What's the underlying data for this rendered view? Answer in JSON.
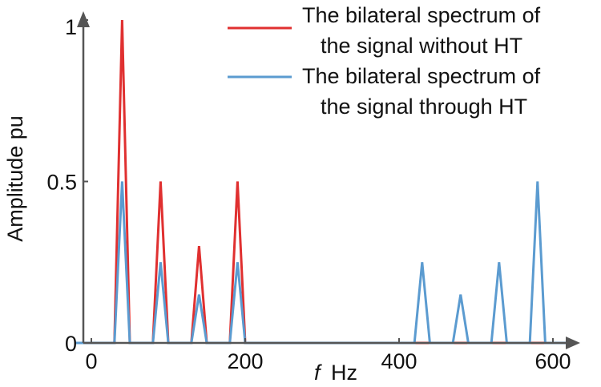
{
  "chart_data": {
    "type": "line",
    "xlabel_italic": "f",
    "xlabel_unit": "Hz",
    "ylabel": "Amplitude pu",
    "xlim": [
      -20,
      620
    ],
    "ylim": [
      0,
      1.03
    ],
    "x_ticks": [
      0,
      200,
      400,
      600
    ],
    "y_ticks": [
      {
        "value": 0,
        "label": "0"
      },
      {
        "value": 0.5,
        "label": "0.5"
      },
      {
        "value": 1,
        "label": "1"
      }
    ],
    "grid": false,
    "legend_position": "top-right",
    "series": [
      {
        "name_lines": [
          "The bilateral spectrum of",
          "the signal without HT"
        ],
        "color": "#e03030",
        "x": [
          -20,
          30,
          40,
          50,
          80,
          90,
          100,
          130,
          140,
          150,
          180,
          190,
          200,
          620
        ],
        "y": [
          0,
          0,
          1,
          0,
          0,
          0.5,
          0,
          0,
          0.3,
          0,
          0,
          0.5,
          0,
          0
        ]
      },
      {
        "name_lines": [
          "The bilateral spectrum of",
          "the signal through HT"
        ],
        "color": "#5b9bd0",
        "x": [
          -20,
          30,
          40,
          50,
          80,
          90,
          100,
          130,
          140,
          150,
          180,
          190,
          200,
          420,
          430,
          440,
          470,
          480,
          490,
          520,
          530,
          540,
          570,
          580,
          590,
          620
        ],
        "y": [
          0,
          0,
          0.5,
          0,
          0,
          0.25,
          0,
          0,
          0.15,
          0,
          0,
          0.25,
          0,
          0,
          0.25,
          0,
          0,
          0.15,
          0,
          0,
          0.25,
          0,
          0,
          0.5,
          0,
          0
        ]
      }
    ]
  }
}
